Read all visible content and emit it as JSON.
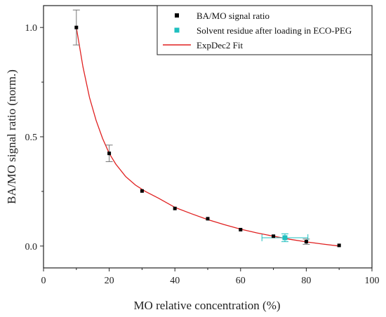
{
  "chart_data": {
    "type": "scatter",
    "xlabel": "MO relative concentration (%)",
    "ylabel": "BA/MO signal ratio (norm.)",
    "xlim": [
      0,
      100
    ],
    "ylim": [
      -0.1,
      1.1
    ],
    "x_ticks": [
      0,
      20,
      40,
      60,
      80,
      100
    ],
    "y_ticks": [
      0.0,
      0.5,
      1.0
    ],
    "x_tick_labels": [
      "0",
      "20",
      "40",
      "60",
      "80",
      "100"
    ],
    "y_tick_labels": [
      "0.0",
      "0.5",
      "1.0"
    ],
    "grid": false,
    "legend_position": "top-right",
    "series": [
      {
        "name": "BA/MO signal ratio",
        "kind": "scatter",
        "marker": "square",
        "color": "#000000",
        "x": [
          10,
          20,
          30,
          40,
          50,
          60,
          70,
          80,
          90
        ],
        "y": [
          1.0,
          0.424,
          0.252,
          0.172,
          0.125,
          0.075,
          0.045,
          0.02,
          0.003
        ],
        "y_err": [
          0.08,
          0.038,
          0,
          0,
          0,
          0,
          0,
          0.012,
          0
        ]
      },
      {
        "name": "Solvent residue after loading in ECO-PEG",
        "kind": "scatter",
        "marker": "square",
        "color": "#1fbfbf",
        "x": [
          73.5
        ],
        "y": [
          0.038
        ],
        "x_err": [
          7
        ],
        "y_err": [
          0.018
        ]
      },
      {
        "name": "ExpDec2 Fit",
        "kind": "line",
        "color": "#e02020",
        "x": [
          10,
          12,
          14,
          16,
          18,
          20,
          22,
          25,
          28,
          31,
          35,
          40,
          45,
          50,
          55,
          60,
          65,
          70,
          75,
          80,
          85,
          90
        ],
        "y": [
          1.0,
          0.82,
          0.68,
          0.575,
          0.492,
          0.424,
          0.375,
          0.318,
          0.279,
          0.25,
          0.219,
          0.177,
          0.148,
          0.121,
          0.098,
          0.077,
          0.06,
          0.045,
          0.031,
          0.019,
          0.009,
          0.0
        ]
      }
    ]
  }
}
